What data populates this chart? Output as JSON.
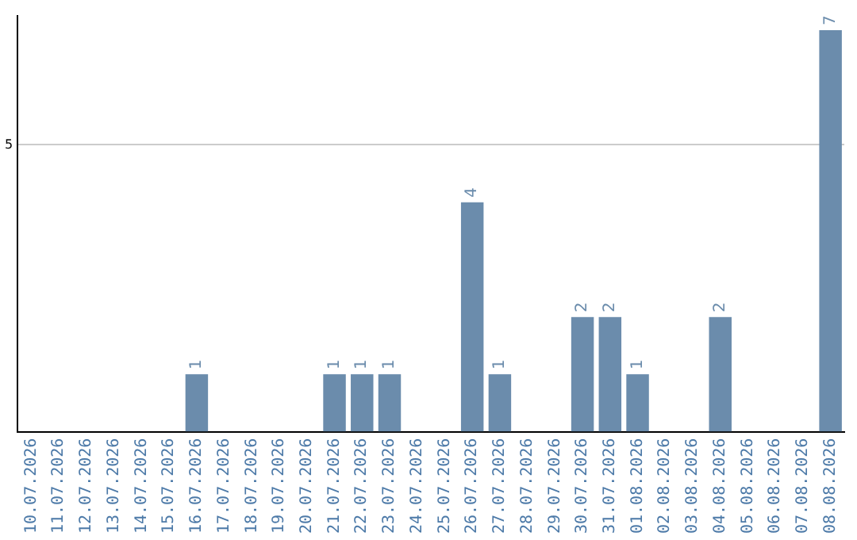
{
  "chart_data": {
    "type": "bar",
    "categories": [
      "10.07.2026",
      "11.07.2026",
      "12.07.2026",
      "13.07.2026",
      "14.07.2026",
      "15.07.2026",
      "16.07.2026",
      "17.07.2026",
      "18.07.2026",
      "19.07.2026",
      "20.07.2026",
      "21.07.2026",
      "22.07.2026",
      "23.07.2026",
      "24.07.2026",
      "25.07.2026",
      "26.07.2026",
      "27.07.2026",
      "28.07.2026",
      "29.07.2026",
      "30.07.2026",
      "31.07.2026",
      "01.08.2026",
      "02.08.2026",
      "03.08.2026",
      "04.08.2026",
      "05.08.2026",
      "06.08.2026",
      "07.08.2026",
      "08.08.2026"
    ],
    "values": [
      0,
      0,
      0,
      0,
      0,
      0,
      1,
      0,
      0,
      0,
      0,
      1,
      1,
      1,
      0,
      0,
      4,
      1,
      0,
      0,
      2,
      2,
      1,
      0,
      0,
      2,
      0,
      0,
      0,
      7
    ],
    "value_labels": [
      null,
      null,
      null,
      null,
      null,
      null,
      "1",
      null,
      null,
      null,
      null,
      "1",
      "1",
      "1",
      null,
      null,
      "4",
      "1",
      null,
      null,
      "2",
      "2",
      "1",
      null,
      null,
      "2",
      null,
      null,
      null,
      "7"
    ],
    "color": "#6b8cac",
    "ylim": [
      0,
      7.25
    ],
    "yticks": [
      5
    ],
    "grid": "y",
    "legend": false
  }
}
